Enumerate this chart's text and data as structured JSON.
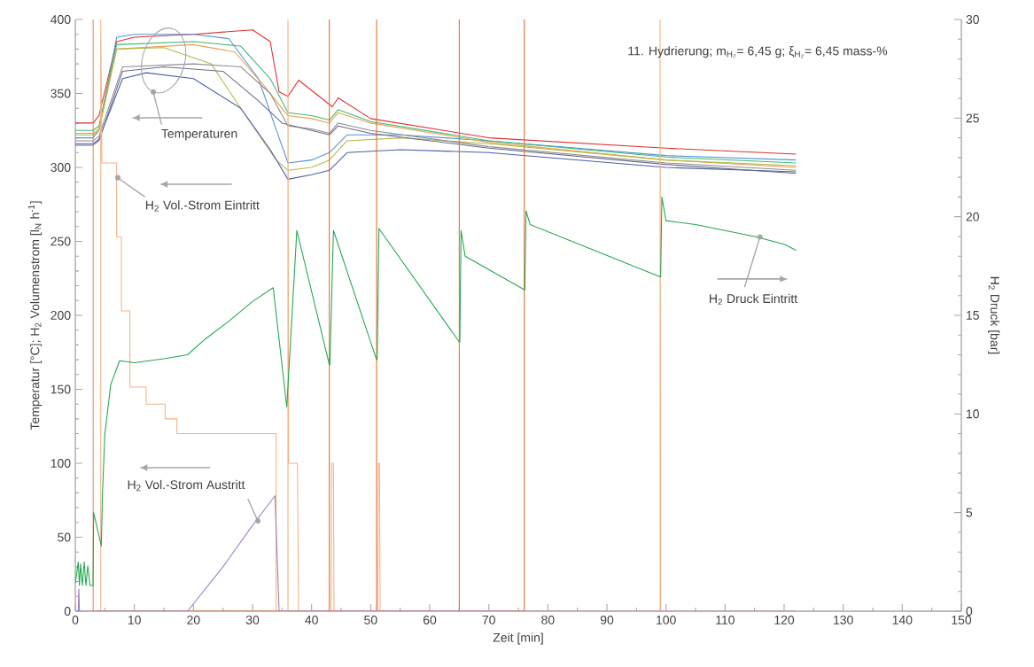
{
  "chart_data": {
    "type": "line",
    "xlabel": "Zeit [min]",
    "ylabel": "Temperatur [°C]; H$_{2}$ Volumenstrom [l$_{N}$ h$^{-1}$]",
    "y2label": "H$_{2}$ Druck [bar]",
    "xlim": [
      0,
      150
    ],
    "xticks": [
      0,
      10,
      20,
      30,
      40,
      50,
      60,
      70,
      80,
      90,
      100,
      110,
      120,
      130,
      140,
      150
    ],
    "ylim": [
      0,
      400
    ],
    "yticks": [
      0,
      50,
      100,
      150,
      200,
      250,
      300,
      350,
      400
    ],
    "y2lim": [
      0,
      30
    ],
    "y2ticks": [
      0,
      5,
      10,
      15,
      20,
      25,
      30
    ],
    "marker": "none",
    "series": [
      {
        "color": "#e03030",
        "x": [
          0,
          3,
          4,
          7,
          10,
          20,
          30,
          33,
          34.5,
          36,
          37.8,
          43.5,
          44.5,
          50,
          70,
          100,
          122
        ],
        "values": [
          330,
          330,
          335,
          385,
          388,
          390,
          393,
          385,
          351,
          348,
          359,
          341,
          347,
          333,
          320,
          313,
          309
        ]
      },
      {
        "color": "#4f94d4",
        "x": [
          0,
          3,
          4,
          7,
          10,
          20,
          26,
          31,
          34.5,
          36,
          40,
          43,
          46,
          55,
          70,
          100,
          122
        ],
        "values": [
          320,
          320,
          325,
          388,
          390,
          390,
          387,
          360,
          320,
          303,
          305,
          310,
          322,
          322,
          318,
          308,
          305
        ]
      },
      {
        "color": "#3cb878",
        "x": [
          0,
          3,
          4,
          7,
          20,
          28,
          33,
          36,
          40,
          43,
          44.5,
          50,
          70,
          100,
          122
        ],
        "values": [
          325,
          325,
          328,
          383,
          385,
          382,
          360,
          337,
          335,
          332,
          339,
          331,
          318,
          307,
          303
        ]
      },
      {
        "color": "#e8a050",
        "x": [
          0,
          3,
          4,
          7,
          20,
          27,
          32,
          36,
          40,
          43,
          44.5,
          50,
          70,
          100,
          122
        ],
        "values": [
          323,
          323,
          326,
          380,
          383,
          378,
          355,
          335,
          333,
          330,
          337,
          330,
          317,
          305,
          300
        ]
      },
      {
        "color": "#b5b84a",
        "x": [
          0,
          3,
          4,
          7,
          15,
          23,
          28,
          34,
          36,
          40,
          43,
          46,
          55,
          70,
          100,
          122
        ],
        "values": [
          322,
          322,
          325,
          380,
          381,
          370,
          340,
          305,
          298,
          300,
          305,
          318,
          320,
          316,
          305,
          301
        ]
      },
      {
        "color": "#8c8c8c",
        "x": [
          0,
          3,
          4,
          8,
          20,
          28,
          33,
          36,
          40,
          43,
          44.5,
          50,
          70,
          100,
          122
        ],
        "values": [
          318,
          318,
          321,
          368,
          370,
          368,
          350,
          328,
          326,
          323,
          330,
          325,
          314,
          303,
          298
        ]
      },
      {
        "color": "#4a5fa8",
        "x": [
          0,
          3,
          4,
          8,
          12,
          20,
          28,
          33,
          36,
          40,
          43,
          46,
          55,
          70,
          100,
          122
        ],
        "values": [
          316,
          316,
          319,
          360,
          364,
          360,
          340,
          312,
          292,
          295,
          298,
          310,
          312,
          310,
          300,
          297
        ]
      },
      {
        "color": "#6a6a90",
        "x": [
          0,
          3,
          4,
          8,
          15,
          25,
          31,
          35,
          40,
          43,
          44.5,
          50,
          70,
          100,
          122
        ],
        "values": [
          315,
          315,
          318,
          365,
          368,
          365,
          345,
          330,
          325,
          322,
          328,
          323,
          313,
          302,
          296
        ]
      },
      {
        "color": "#f4b183",
        "x": [
          0,
          4.3,
          4.3,
          4.5,
          7,
          7,
          7.8,
          7.8,
          9.25,
          9.25,
          12,
          12,
          15.2,
          15.2,
          17.2,
          17.2,
          34,
          34,
          36,
          36,
          36.1,
          37.6,
          37.8,
          43.3,
          43.4,
          43.7,
          43.8,
          51.2,
          51.3,
          51.5,
          51.6,
          99,
          99,
          99.1,
          122
        ],
        "values": [
          0,
          0,
          400,
          303,
          303,
          253,
          253,
          203,
          203,
          151.5,
          151.5,
          140,
          140,
          130,
          130,
          120,
          120,
          0,
          0,
          400,
          100,
          100,
          0,
          0,
          100,
          100,
          0,
          0,
          100,
          100,
          0,
          0,
          400,
          0,
          0
        ]
      },
      {
        "color": "#e26b2a",
        "x": [
          3,
          3,
          3,
          43,
          43,
          43,
          51,
          51,
          51,
          65,
          65,
          65,
          76,
          76
        ],
        "values": [
          0,
          400,
          0,
          0,
          400,
          0,
          0,
          400,
          0,
          0,
          400,
          0,
          0,
          400
        ]
      },
      {
        "color": "#9b7fc0",
        "x": [
          0,
          0.5,
          0.6,
          0.7,
          19,
          25,
          30,
          33.8,
          34.5,
          122
        ],
        "values": [
          0,
          0,
          15,
          0,
          0,
          30,
          58,
          78,
          0,
          0
        ]
      },
      {
        "color": "#22a650",
        "axis": "y2",
        "x": [
          0,
          0.5,
          0.7,
          0.9,
          1.2,
          1.5,
          1.8,
          2.1,
          2.5,
          3,
          3.1,
          4.4,
          4.6,
          5,
          6,
          7.5,
          10,
          15,
          19,
          22,
          26,
          30,
          33.5,
          35.8,
          37.5,
          43,
          43.1,
          43.7,
          51,
          51.1,
          51.4,
          65,
          65.1,
          65.3,
          66,
          76,
          76.1,
          76.3,
          77,
          99,
          99.1,
          99.3,
          100,
          105,
          110,
          115,
          120,
          122
        ],
        "values": [
          1.4,
          2.5,
          1.3,
          2.4,
          1.3,
          2.5,
          1.3,
          2.3,
          1.3,
          1.3,
          5.0,
          3.3,
          6.0,
          9.0,
          11.5,
          12.7,
          12.6,
          12.8,
          13.0,
          13.8,
          14.7,
          15.7,
          16.4,
          10.35,
          19.3,
          12.5,
          12.5,
          19.3,
          12.75,
          12.75,
          19.4,
          13.65,
          13.65,
          19.3,
          18.0,
          16.3,
          16.3,
          20.3,
          19.6,
          16.95,
          16.95,
          21.0,
          19.8,
          19.6,
          19.3,
          19.0,
          18.6,
          18.3
        ]
      }
    ],
    "annotations": [
      "11. Hydrierung; m$_{H₂}$= 6,45 g; ξ$_{H₂}$= 6,45 mass-%",
      {
        "text": "Temperaturen",
        "x": 13.2,
        "y": 351
      },
      {
        "text": "H$_{2}$ Vol.-Strom Eintritt",
        "x": 7.2,
        "y": 293
      },
      {
        "text": "H$_{2}$ Vol.-Strom Austritt",
        "x": 30.9,
        "y": 61
      },
      {
        "text": "H$_{2}$ Druck Eintritt",
        "x": 115.9,
        "y": 253
      }
    ]
  }
}
